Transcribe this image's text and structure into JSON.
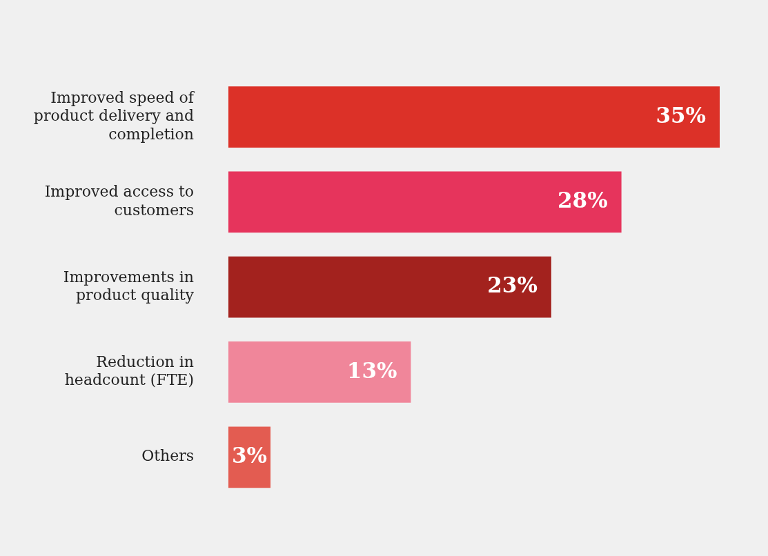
{
  "chart_data": {
    "type": "bar",
    "orientation": "horizontal",
    "categories": [
      "Improved speed of\nproduct delivery and\ncompletion",
      "Improved access to\ncustomers",
      "Improvements in\nproduct quality",
      "Reduction in\nheadcount (FTE)",
      "Others"
    ],
    "values": [
      35,
      28,
      23,
      13,
      3
    ],
    "colors": [
      "#dc3128",
      "#e6345c",
      "#a3221e",
      "#f0869a",
      "#e35c51"
    ],
    "value_labels": [
      "35%",
      "28%",
      "23%",
      "13%",
      "3%"
    ],
    "xlim": [
      0,
      35
    ],
    "tick_labels": "y",
    "grid": false,
    "legend": false
  }
}
